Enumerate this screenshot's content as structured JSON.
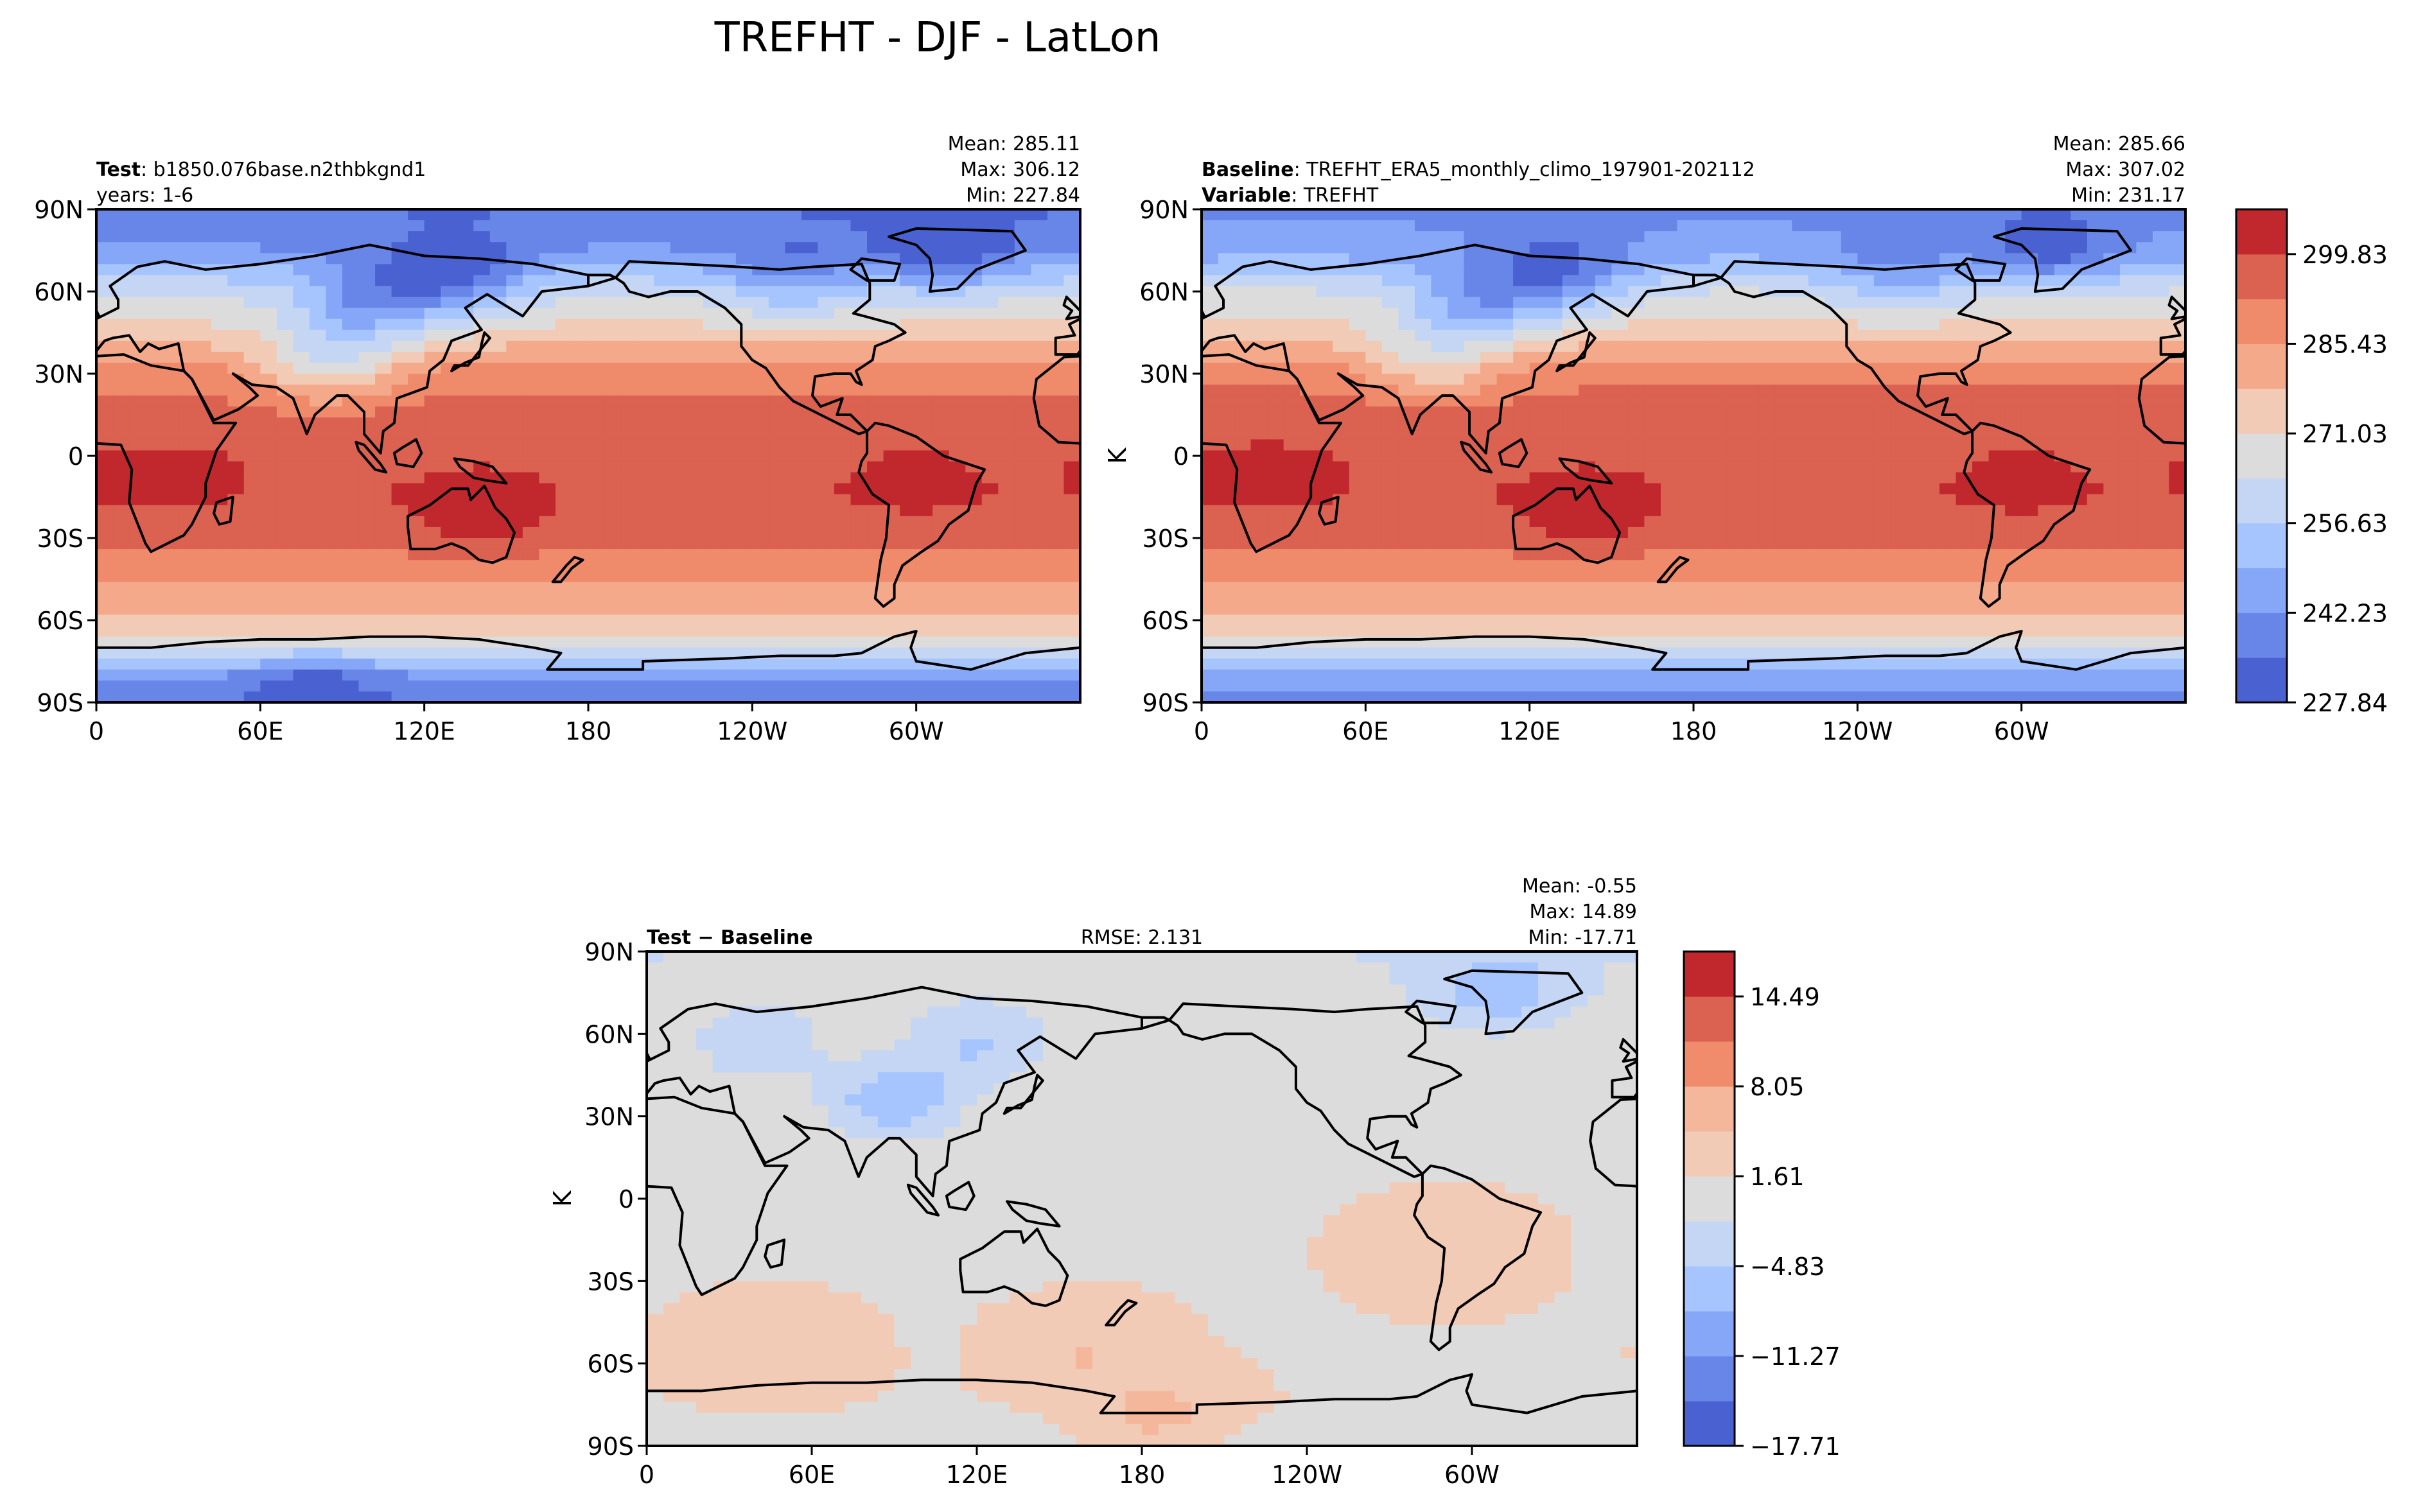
{
  "figure_title": "TREFHT - DJF - LatLon",
  "colors": {
    "test_baseline_levels": [
      "#4a62d1",
      "#6886e8",
      "#86a6f7",
      "#a6c4fd",
      "#c4d6f3",
      "#dcdcdc",
      "#f2cbb7",
      "#f5a98b",
      "#ef8a6b",
      "#db6150",
      "#c0282d"
    ],
    "diff_levels": [
      "#4a62d1",
      "#6886e8",
      "#86a6f7",
      "#a6c4fd",
      "#c4d6f3",
      "#dcdcdc",
      "#f2cbb7",
      "#f5b79b",
      "#f08b6c",
      "#db6150",
      "#c0282d"
    ],
    "coastline": "#000000"
  },
  "chart_data": [
    {
      "type": "heatmap",
      "panel": "test",
      "header_left": [
        {
          "bold": "Test",
          "text": "b1850.076base.n2thbkgnd1"
        },
        {
          "bold": "",
          "text": "years: 1-6"
        }
      ],
      "header_center": "",
      "stats": [
        "Mean: 285.11",
        "Max: 306.12",
        "Min: 227.84"
      ],
      "ylabel": "",
      "x_ticks": [
        "0",
        "60E",
        "120E",
        "180",
        "120W",
        "60W"
      ],
      "y_ticks": [
        "90N",
        "60N",
        "30N",
        "0",
        "30S",
        "60S",
        "90S"
      ],
      "lon_range": [
        0,
        360
      ],
      "lat_range": [
        -90,
        90
      ],
      "field": {
        "zonal_profile_K": [
          [
            90,
            235
          ],
          [
            75,
            243
          ],
          [
            60,
            262
          ],
          [
            45,
            274
          ],
          [
            30,
            289
          ],
          [
            15,
            296
          ],
          [
            0,
            299
          ],
          [
            -15,
            299
          ],
          [
            -30,
            294
          ],
          [
            -45,
            286
          ],
          [
            -60,
            278
          ],
          [
            -70,
            268
          ],
          [
            -80,
            244
          ],
          [
            -90,
            236
          ]
        ],
        "hotspots": [
          {
            "lon": 140,
            "lat": -25,
            "dK": 8
          },
          {
            "lon": 25,
            "lat": -10,
            "dK": 4
          },
          {
            "lon": 300,
            "lat": -15,
            "dK": 3
          }
        ],
        "coldspots": [
          {
            "lon": 100,
            "lat": 55,
            "dK": -22
          },
          {
            "lon": 130,
            "lat": 65,
            "dK": -24
          },
          {
            "lon": 85,
            "lat": 33,
            "dK": -20
          },
          {
            "lon": 310,
            "lat": 75,
            "dK": -18
          },
          {
            "lon": 255,
            "lat": 65,
            "dK": -14
          },
          {
            "lon": 80,
            "lat": -80,
            "dK": -10
          }
        ]
      }
    },
    {
      "type": "heatmap",
      "panel": "baseline",
      "header_left": [
        {
          "bold": "Baseline",
          "text": "TREFHT_ERA5_monthly_climo_197901-202112"
        },
        {
          "bold": "Variable",
          "text": "TREFHT"
        }
      ],
      "header_center": "",
      "stats": [
        "Mean: 285.66",
        "Max: 307.02",
        "Min: 231.17"
      ],
      "ylabel": "K",
      "x_ticks": [
        "0",
        "60E",
        "120E",
        "180",
        "120W",
        "60W"
      ],
      "y_ticks": [
        "90N",
        "60N",
        "30N",
        "0",
        "30S",
        "60S",
        "90S"
      ],
      "lon_range": [
        0,
        360
      ],
      "lat_range": [
        -90,
        90
      ],
      "field": {
        "zonal_profile_K": [
          [
            90,
            240
          ],
          [
            75,
            246
          ],
          [
            60,
            264
          ],
          [
            45,
            275
          ],
          [
            30,
            290
          ],
          [
            15,
            297
          ],
          [
            0,
            299
          ],
          [
            -15,
            299
          ],
          [
            -30,
            294
          ],
          [
            -45,
            286
          ],
          [
            -60,
            278
          ],
          [
            -70,
            268
          ],
          [
            -80,
            246
          ],
          [
            -90,
            240
          ]
        ],
        "hotspots": [
          {
            "lon": 140,
            "lat": -25,
            "dK": 8
          },
          {
            "lon": 25,
            "lat": -10,
            "dK": 4
          },
          {
            "lon": 300,
            "lat": -15,
            "dK": 3
          }
        ],
        "coldspots": [
          {
            "lon": 100,
            "lat": 55,
            "dK": -20
          },
          {
            "lon": 130,
            "lat": 65,
            "dK": -22
          },
          {
            "lon": 85,
            "lat": 33,
            "dK": -16
          },
          {
            "lon": 310,
            "lat": 75,
            "dK": -16
          },
          {
            "lon": 255,
            "lat": 65,
            "dK": -12
          }
        ]
      },
      "colorbar": {
        "ticks": [
          "299.83",
          "285.43",
          "271.03",
          "256.63",
          "242.23",
          "227.84"
        ],
        "min": 227.84,
        "max": 307.02
      }
    },
    {
      "type": "heatmap",
      "panel": "difference",
      "header_left": [
        {
          "bold": "Test − Baseline",
          "text": ""
        }
      ],
      "header_center": "RMSE: 2.131",
      "stats": [
        "Mean: -0.55",
        "Max: 14.89",
        "Min: -17.71"
      ],
      "ylabel": "K",
      "x_ticks": [
        "0",
        "60E",
        "120E",
        "180",
        "120W",
        "60W"
      ],
      "y_ticks": [
        "90N",
        "60N",
        "30N",
        "0",
        "30S",
        "60S",
        "90S"
      ],
      "lon_range": [
        0,
        360
      ],
      "lat_range": [
        -90,
        90
      ],
      "field": {
        "zonal_profile_K": [
          [
            90,
            -3
          ],
          [
            75,
            -2
          ],
          [
            60,
            -1
          ],
          [
            30,
            0
          ],
          [
            0,
            0
          ],
          [
            -30,
            0
          ],
          [
            -60,
            0
          ],
          [
            -75,
            0
          ],
          [
            -90,
            -1
          ]
        ],
        "hotspots": [
          {
            "lon": 185,
            "lat": -80,
            "dK": 4
          },
          {
            "lon": 45,
            "lat": -57,
            "dK": 3
          },
          {
            "lon": 160,
            "lat": -57,
            "dK": 3
          },
          {
            "lon": 290,
            "lat": -20,
            "dK": 3
          }
        ],
        "coldspots": [
          {
            "lon": 90,
            "lat": 35,
            "dK": -8
          },
          {
            "lon": 120,
            "lat": 55,
            "dK": -5
          },
          {
            "lon": 310,
            "lat": 75,
            "dK": -6
          },
          {
            "lon": 40,
            "lat": 55,
            "dK": -4
          }
        ]
      },
      "colorbar": {
        "ticks": [
          "14.49",
          "8.05",
          "1.61",
          "−4.83",
          "−11.27",
          "−17.71"
        ],
        "min": -17.71,
        "max": 14.89
      }
    }
  ]
}
